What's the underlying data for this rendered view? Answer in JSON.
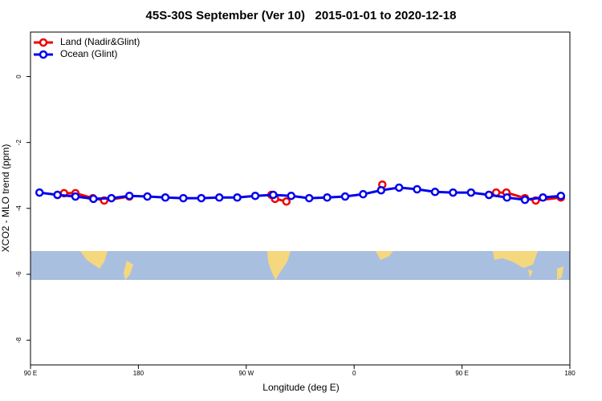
{
  "chart_data": {
    "type": "line",
    "title": "45S-30S September (Ver 10)   2015-01-01 to 2020-12-18",
    "x_label": "Longitude (deg E)",
    "y_label": "XCO2 - MLO trend (ppm)",
    "xlim": [
      90,
      540
    ],
    "xticks": [
      {
        "value": 90,
        "label": "90 E"
      },
      180,
      {
        "value": 270,
        "label": "90 W"
      },
      {
        "value": 360,
        "label": "0"
      },
      {
        "value": 450,
        "label": "90 E"
      },
      {
        "value": 540,
        "label": "180"
      }
    ],
    "ylim": [
      -8.75,
      1.35
    ],
    "yticks": [
      0,
      -2,
      -4,
      -6,
      -8
    ],
    "legend": "topleft",
    "series": [
      {
        "name": "Land (Nadir&Glint)",
        "color": "#ee0000",
        "x": [
          112.5,
          118,
          127.5,
          142,
          151.5,
          172.5,
          230,
          291,
          294,
          303.5,
          340,
          383.5,
          430,
          472.5,
          478.5,
          487,
          502.5,
          511.5,
          532.5
        ],
        "values": [
          -3.59,
          -3.54,
          -3.54,
          -3.69,
          -3.76,
          -3.64,
          null,
          -3.59,
          -3.71,
          -3.79,
          null,
          -3.28,
          null,
          -3.59,
          -3.52,
          -3.52,
          -3.69,
          -3.76,
          -3.67
        ]
      },
      {
        "name": "Ocean (Glint)",
        "color": "#0000ee",
        "x": [
          97.5,
          112.5,
          127.5,
          142.5,
          157.5,
          172.5,
          187.5,
          202.5,
          217.5,
          232.5,
          247.5,
          262.5,
          277.5,
          292.5,
          307.5,
          322.5,
          337.5,
          352.5,
          367.5,
          382.5,
          397.5,
          412.5,
          427.5,
          442.5,
          457.5,
          472.5,
          487.5,
          502.5,
          517.5,
          532.5
        ],
        "values": [
          -3.52,
          -3.59,
          -3.64,
          -3.71,
          -3.69,
          -3.62,
          -3.64,
          -3.67,
          -3.69,
          -3.69,
          -3.67,
          -3.67,
          -3.62,
          -3.59,
          -3.62,
          -3.69,
          -3.67,
          -3.64,
          -3.57,
          -3.45,
          -3.37,
          -3.42,
          -3.5,
          -3.52,
          -3.52,
          -3.59,
          -3.67,
          -3.74,
          -3.67,
          -3.62
        ]
      }
    ]
  }
}
